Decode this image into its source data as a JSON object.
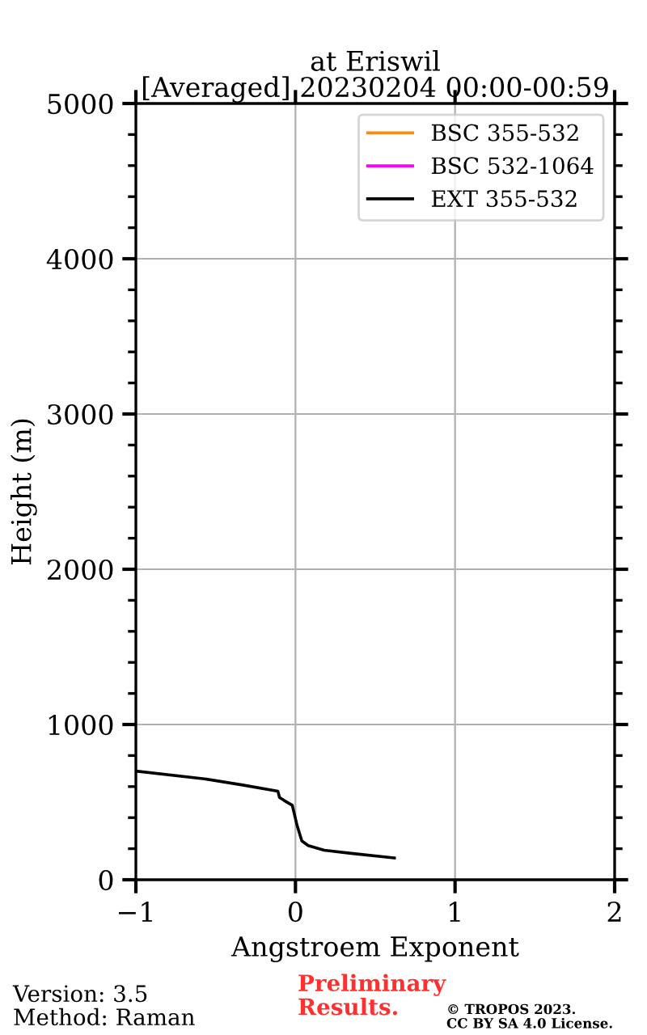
{
  "chart_data": {
    "type": "line",
    "title": "at Eriswil\n[Averaged] 20230204 00:00-00:59",
    "xlabel": "Angstroem Exponent",
    "ylabel": "Height (m)",
    "series": [
      {
        "name": "BSC 355-532",
        "color": "#ff8c00"
      },
      {
        "name": "BSC 532-1064",
        "color": "#ff00ff"
      },
      {
        "name": "EXT 355-532",
        "color": "#000000",
        "x": [
          -1,
          -0.57,
          -0.33,
          -0.11,
          -0.1,
          -0.07,
          -0.02,
          0.01,
          0.04,
          0.08,
          0.18,
          0.35,
          0.62
        ],
        "values": [
          700,
          650,
          610,
          570,
          530,
          510,
          480,
          350,
          250,
          220,
          190,
          170,
          140
        ]
      }
    ],
    "xlim": [
      -1,
      2
    ],
    "xticks": [
      {
        "value": -1,
        "label": "−1"
      },
      0,
      1,
      2
    ],
    "ylim": [
      0,
      5000
    ],
    "yticks": [
      0,
      {
        "value": 200,
        "label": null
      },
      {
        "value": 400,
        "label": null
      },
      {
        "value": 600,
        "label": null
      },
      {
        "value": 800,
        "label": null
      },
      1000,
      {
        "value": 1200,
        "label": null
      },
      {
        "value": 1400,
        "label": null
      },
      {
        "value": 1600,
        "label": null
      },
      {
        "value": 1800,
        "label": null
      },
      2000,
      {
        "value": 2200,
        "label": null
      },
      {
        "value": 2400,
        "label": null
      },
      {
        "value": 2600,
        "label": null
      },
      {
        "value": 2800,
        "label": null
      },
      3000,
      {
        "value": 3200,
        "label": null
      },
      {
        "value": 3400,
        "label": null
      },
      {
        "value": 3600,
        "label": null
      },
      {
        "value": 3800,
        "label": null
      },
      4000,
      {
        "value": 4200,
        "label": null
      },
      {
        "value": 4400,
        "label": null
      },
      {
        "value": 4600,
        "label": null
      },
      {
        "value": 4800,
        "label": null
      },
      5000
    ],
    "grid": true,
    "legend": "top right",
    "annotations": [
      "Version: 3.5\nMethod: Raman",
      "Preliminary\nResults.",
      "© TROPOS 2023.\nCC BY SA 4.0 License."
    ]
  }
}
